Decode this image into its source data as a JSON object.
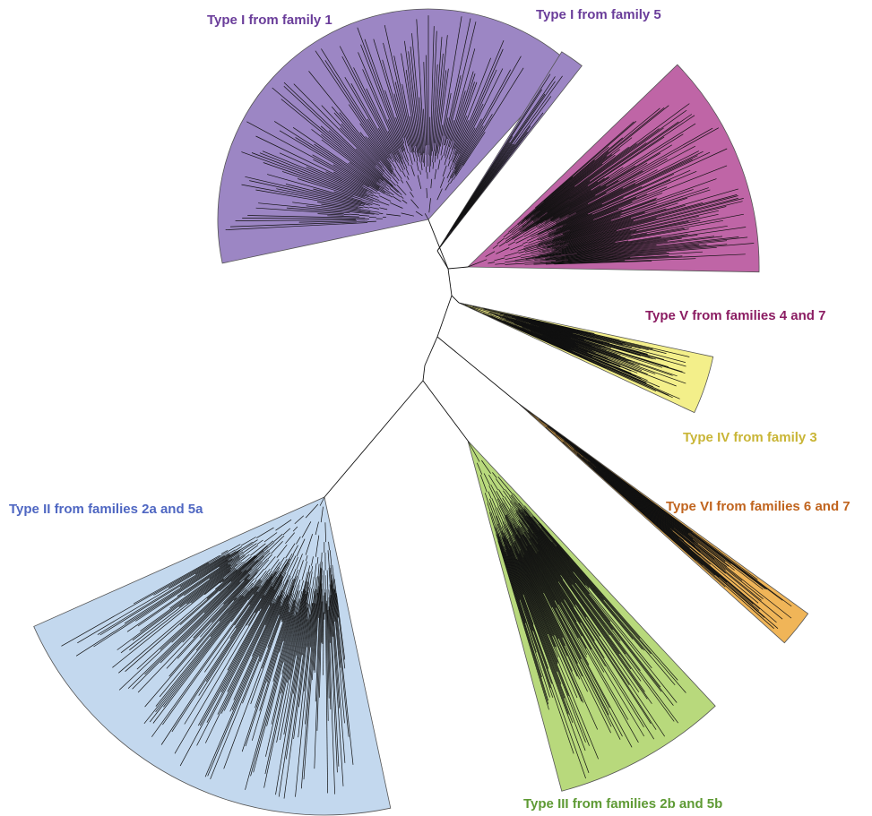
{
  "figure": {
    "type": "unrooted-phylogenetic-tree"
  },
  "clades": [
    {
      "id": "type1-fam1",
      "label": "Type I from family 1",
      "fill": "#9c86c4",
      "label_color": "#6a3d9a",
      "leaf_count": 150
    },
    {
      "id": "type1-fam5",
      "label": "Type I from family 5",
      "fill": "#9c86c4",
      "label_color": "#6a3d9a",
      "leaf_count": 14
    },
    {
      "id": "type5-fam47",
      "label": "Type V from families 4 and 7",
      "fill": "#bf65a6",
      "label_color": "#8b1c62",
      "leaf_count": 150
    },
    {
      "id": "type4-fam3",
      "label": "Type IV from family 3",
      "fill": "#f3ef8a",
      "label_color": "#c9b536",
      "leaf_count": 90
    },
    {
      "id": "type6-fam67",
      "label": "Type VI from families 6 and 7",
      "fill": "#f0b558",
      "label_color": "#c0641e",
      "leaf_count": 50
    },
    {
      "id": "type3-fam2b5b",
      "label": "Type III from families 2b and 5b",
      "fill": "#b8d97c",
      "label_color": "#5e9a34",
      "leaf_count": 130
    },
    {
      "id": "type2-fam2a5a",
      "label": "Type II from families 2a and 5a",
      "fill": "#c3d8ee",
      "label_color": "#4f67c2",
      "leaf_count": 200
    }
  ]
}
